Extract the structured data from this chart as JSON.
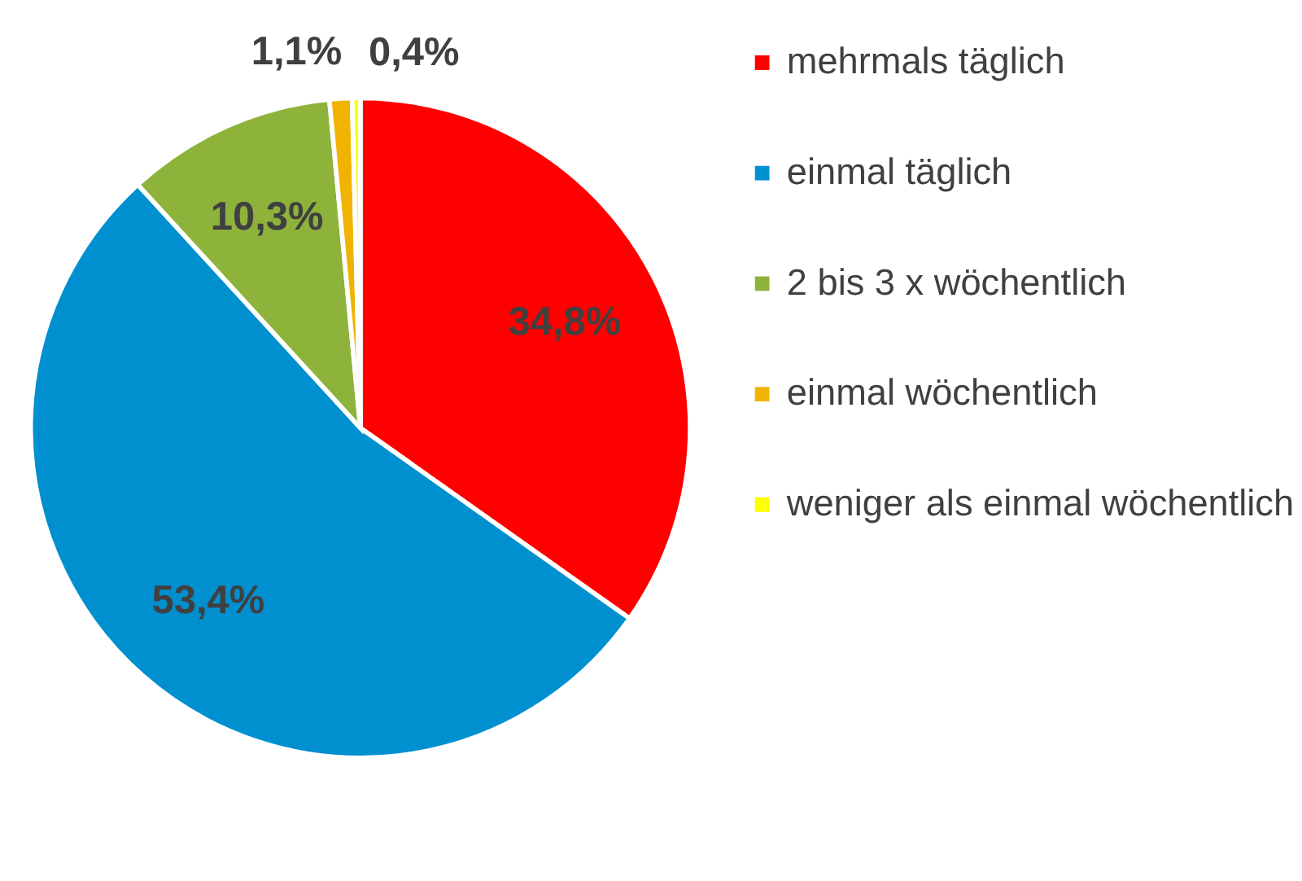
{
  "chart_data": {
    "type": "pie",
    "categories": [
      "mehrmals täglich",
      "einmal täglich",
      "2 bis 3 x wöchentlich",
      "einmal wöchentlich",
      "weniger als einmal wöchentlich"
    ],
    "values": [
      34.8,
      53.4,
      10.3,
      1.1,
      0.4
    ],
    "colors": [
      "#ff0000",
      "#0090d0",
      "#8db33a",
      "#f0b400",
      "#ffff00"
    ],
    "value_labels": [
      "34,8%",
      "53,4%",
      "10,3%",
      "1,1%",
      "0,4%"
    ],
    "legend": "right"
  }
}
